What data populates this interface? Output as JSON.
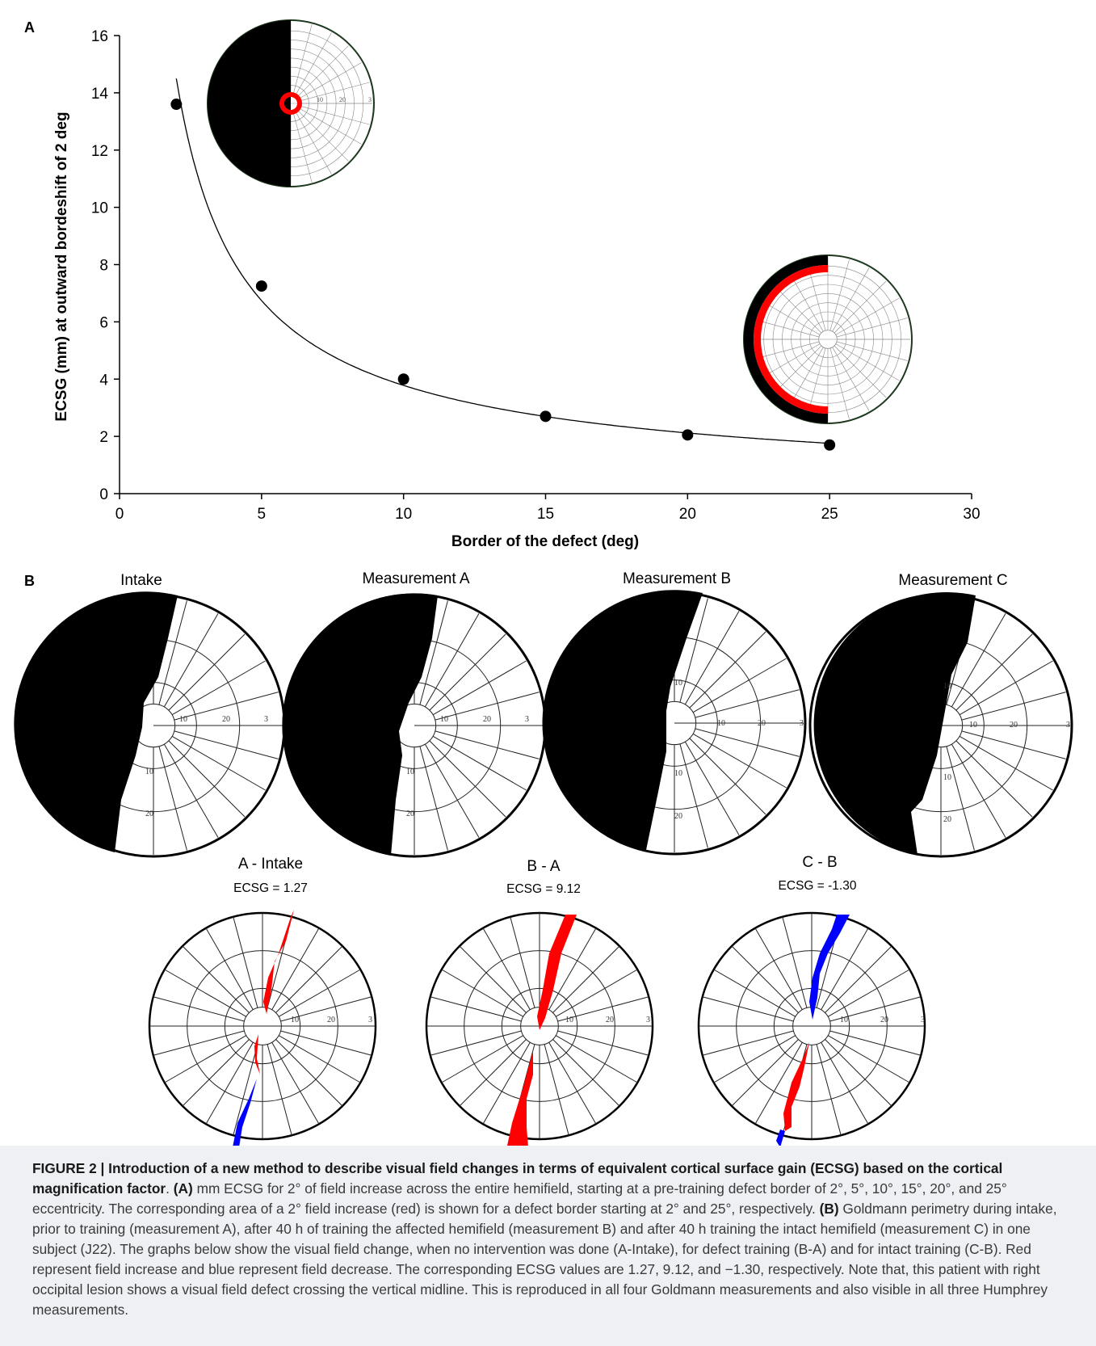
{
  "panel_labels": {
    "a": "A",
    "b": "B"
  },
  "chart_data": {
    "type": "scatter",
    "title": "",
    "xlabel": "Border of the defect (deg)",
    "ylabel": "ECSG (mm) at outward bordeshift of 2 deg",
    "xlim": [
      0,
      30
    ],
    "ylim": [
      0,
      16
    ],
    "xticks": [
      "0",
      "5",
      "10",
      "15",
      "20",
      "25",
      "30"
    ],
    "yticks": [
      "0",
      "2",
      "4",
      "6",
      "8",
      "10",
      "12",
      "14",
      "16"
    ],
    "x": [
      2,
      5,
      10,
      15,
      20,
      25
    ],
    "y": [
      13.6,
      7.25,
      4.0,
      2.7,
      2.05,
      1.7
    ],
    "trendline": "power fit",
    "grid": false,
    "legend": "none"
  },
  "perimetry_labels": {
    "r10": "10",
    "r20": "20",
    "r30": "3"
  },
  "goldmann": [
    {
      "title": "Intake"
    },
    {
      "title": "Measurement A"
    },
    {
      "title": "Measurement B"
    },
    {
      "title": "Measurement C"
    }
  ],
  "differences": [
    {
      "title": "A - Intake",
      "ecsg": "ECSG = 1.27"
    },
    {
      "title": "B - A",
      "ecsg": "ECSG = 9.12"
    },
    {
      "title": "C - B",
      "ecsg": "ECSG = -1.30"
    }
  ],
  "colors": {
    "increase": "#ff0000",
    "decrease": "#0000ff",
    "defect": "#000000"
  },
  "caption": {
    "label": "FIGURE 2 |",
    "title": "Introduction of a new method to describe visual field changes in terms of equivalent cortical surface gain (ECSG) based on the cortical magnification factor",
    "a_label": "(A)",
    "a_text": "mm ECSG for 2°  of field increase across the entire hemifield, starting at a pre-training defect border of 2°, 5°, 10°, 15°, 20°, and 25° eccentricity. The corresponding area of a 2°  field increase (red) is shown for a defect border starting at 2°  and 25°, respectively.",
    "b_label": "(B)",
    "b_text": "Goldmann perimetry during intake, prior to training (measurement A), after 40 h of training the affected hemifield (measurement B) and after 40 h training the intact hemifield (measurement C) in one subject (J22). The graphs below show the visual field change, when no intervention was done (A-Intake), for defect training (B-A) and for intact training (C-B). Red represent field increase and blue represent field decrease. The corresponding ECSG values are 1.27, 9.12, and −1.30, respectively. Note that, this patient with right occipital lesion shows a visual field defect crossing the vertical midline. This is reproduced in all four Goldmann measurements and also visible in all three Humphrey measurements."
  }
}
